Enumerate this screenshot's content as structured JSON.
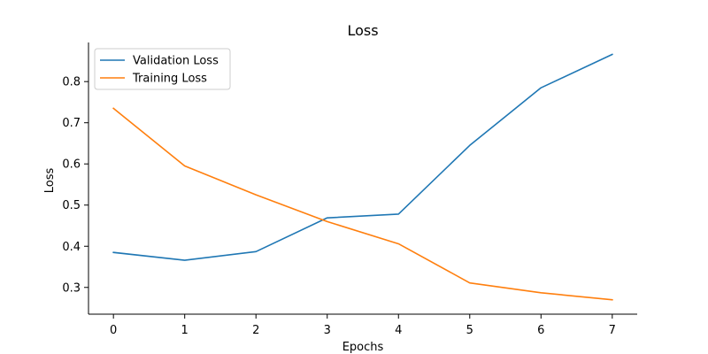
{
  "chart_data": {
    "type": "line",
    "title": "Loss",
    "xlabel": "Epochs",
    "ylabel": "Loss",
    "x": [
      0,
      1,
      2,
      3,
      4,
      5,
      6,
      7
    ],
    "xticks": [
      0,
      1,
      2,
      3,
      4,
      5,
      6,
      7
    ],
    "yticks": [
      0.3,
      0.4,
      0.5,
      0.6,
      0.7,
      0.8
    ],
    "xlim": [
      -0.35,
      7.35
    ],
    "ylim": [
      0.235,
      0.895
    ],
    "grid": false,
    "legend_position": "top-left",
    "series": [
      {
        "name": "Validation Loss",
        "color": "#1f77b4",
        "values": [
          0.385,
          0.366,
          0.387,
          0.469,
          0.478,
          0.645,
          0.785,
          0.866
        ]
      },
      {
        "name": "Training Loss",
        "color": "#ff7f0e",
        "values": [
          0.735,
          0.595,
          0.525,
          0.46,
          0.406,
          0.311,
          0.287,
          0.27
        ]
      }
    ]
  }
}
